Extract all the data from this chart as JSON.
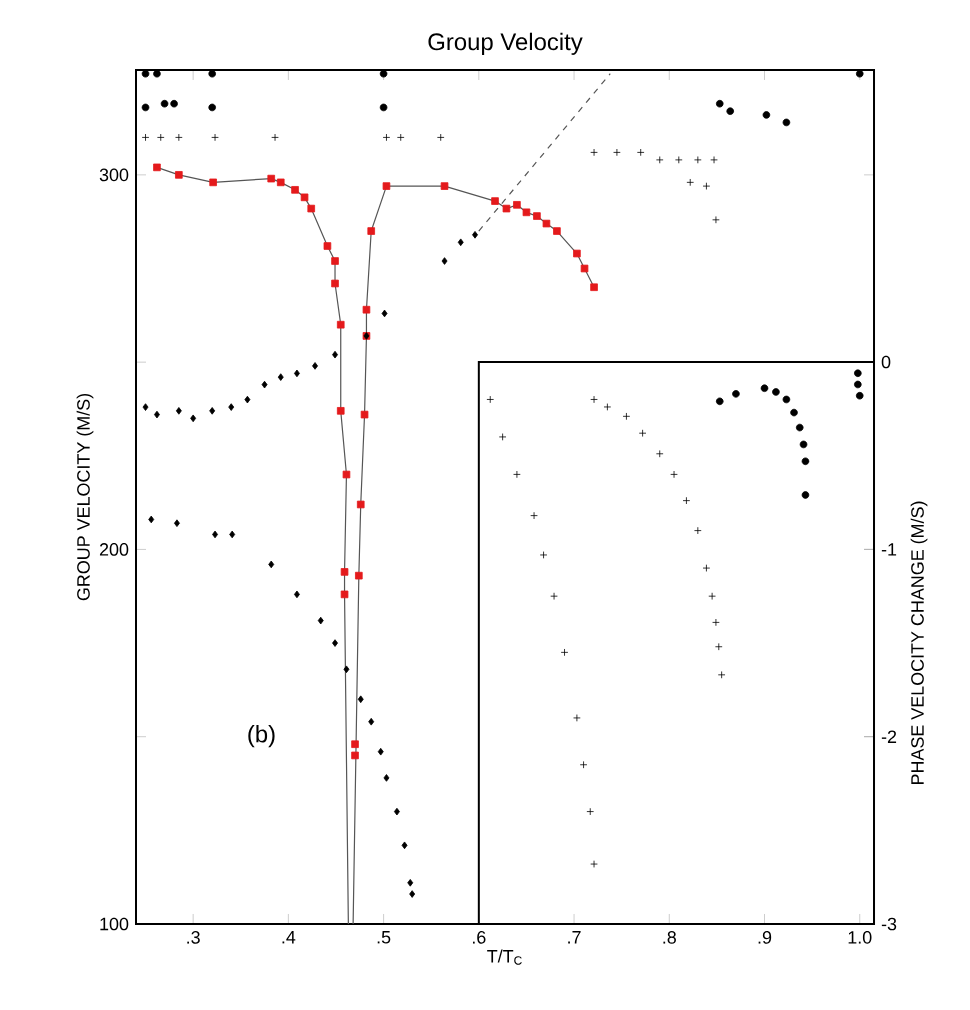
{
  "chart_data": {
    "type": "scatter",
    "title": "Group Velocity",
    "xlabel": "T/T$_{C}$",
    "ylabel": "GROUP VELOCITY (M/S)",
    "y2label": "PHASE VELOCITY CHANGE (M/S)",
    "annotations": [
      "(b)"
    ],
    "xlim": [
      0.24,
      1.015
    ],
    "ylim": [
      100,
      328
    ],
    "y2lim": [
      -3,
      0
    ],
    "xticks": [
      {
        "value": 0.3,
        "label": ".3"
      },
      {
        "value": 0.4,
        "label": ".4"
      },
      {
        "value": 0.5,
        "label": ".5"
      },
      {
        "value": 0.6,
        "label": ".6"
      },
      {
        "value": 0.7,
        "label": ".7"
      },
      {
        "value": 0.8,
        "label": ".8"
      },
      {
        "value": 0.9,
        "label": ".9"
      },
      {
        "value": 1.0,
        "label": "1.0"
      }
    ],
    "yticks": [
      100,
      {
        "value": 150,
        "label": null
      },
      200,
      {
        "value": 250,
        "label": null
      },
      300
    ],
    "y2ticks": [
      0,
      -1,
      -2,
      -3
    ],
    "series": [
      {
        "type": "line",
        "color": "#555555",
        "line_style": "solid",
        "marker": "none",
        "x": [
          0.262,
          0.285,
          0.321,
          0.382,
          0.392,
          0.407,
          0.417,
          0.424,
          0.441,
          0.449,
          0.449,
          0.455,
          0.455,
          0.461,
          0.459,
          0.459,
          0.463
        ],
        "values": [
          302,
          300,
          298,
          299,
          298,
          296,
          294,
          291,
          281,
          277,
          271,
          260,
          237,
          220,
          194,
          188,
          100
        ]
      },
      {
        "type": "line",
        "color": "#555555",
        "line_style": "solid",
        "marker": "none",
        "x": [
          0.468,
          0.474,
          0.476,
          0.48,
          0.482,
          0.482,
          0.487,
          0.503,
          0.564,
          0.617,
          0.629,
          0.64,
          0.65,
          0.661,
          0.671,
          0.682,
          0.703,
          0.711,
          0.721
        ],
        "values": [
          100,
          193,
          212,
          236,
          257,
          264,
          285,
          297,
          297,
          293,
          291,
          292,
          290,
          289,
          287,
          285,
          279,
          275,
          270
        ]
      },
      {
        "type": "line",
        "color": "#555555",
        "line_style": "dashed",
        "marker": "none",
        "x": [
          0.6,
          0.738
        ],
        "values": [
          285,
          327
        ]
      },
      {
        "type": "scatter",
        "color": "#e41a1c",
        "marker": "square",
        "x": [
          0.262,
          0.285,
          0.321,
          0.382,
          0.392,
          0.407,
          0.417,
          0.424,
          0.441,
          0.449,
          0.449,
          0.455,
          0.455,
          0.461,
          0.459,
          0.459,
          0.47,
          0.47,
          0.474,
          0.476,
          0.48,
          0.482,
          0.482,
          0.487,
          0.503,
          0.564,
          0.617,
          0.629,
          0.64,
          0.65,
          0.661,
          0.671,
          0.682,
          0.703,
          0.711,
          0.721
        ],
        "values": [
          302,
          300,
          298,
          299,
          298,
          296,
          294,
          291,
          281,
          277,
          271,
          260,
          237,
          220,
          194,
          188,
          148,
          145,
          193,
          212,
          236,
          257,
          264,
          285,
          297,
          297,
          293,
          291,
          292,
          290,
          289,
          287,
          285,
          279,
          275,
          270
        ]
      },
      {
        "type": "scatter",
        "color": "#000000",
        "marker": "diamond",
        "x": [
          0.25,
          0.262,
          0.285,
          0.3,
          0.32,
          0.34,
          0.357,
          0.375,
          0.392,
          0.409,
          0.428,
          0.449,
          0.482,
          0.501,
          0.564,
          0.581,
          0.596
        ],
        "values": [
          238,
          236,
          237,
          235,
          237,
          238,
          240,
          244,
          246,
          247,
          249,
          252,
          257,
          263,
          277,
          282,
          284
        ]
      },
      {
        "type": "scatter",
        "color": "#000000",
        "marker": "diamond",
        "x": [
          0.256,
          0.283,
          0.323,
          0.341,
          0.382,
          0.409,
          0.434,
          0.449,
          0.461,
          0.476,
          0.487,
          0.497,
          0.503,
          0.514,
          0.522,
          0.528,
          0.53
        ],
        "values": [
          208,
          207,
          204,
          204,
          196,
          188,
          181,
          175,
          168,
          160,
          154,
          146,
          139,
          130,
          121,
          111,
          108
        ]
      },
      {
        "type": "scatter",
        "color": "#000000",
        "marker": "circle",
        "x": [
          0.25,
          0.262,
          0.32,
          0.5,
          1.0
        ],
        "values": [
          327,
          327,
          327,
          327,
          327
        ]
      },
      {
        "type": "scatter",
        "color": "#000000",
        "marker": "circle",
        "x": [
          0.25,
          0.27,
          0.28,
          0.32,
          0.5,
          0.853,
          0.864,
          0.902,
          0.923
        ],
        "values": [
          318,
          319,
          319,
          318,
          318,
          319,
          317,
          316,
          314
        ]
      },
      {
        "type": "scatter",
        "color": "#000000",
        "marker": "cross",
        "x": [
          0.25,
          0.266,
          0.285,
          0.323,
          0.386,
          0.503,
          0.518,
          0.56,
          0.721,
          0.745,
          0.77,
          0.79,
          0.81,
          0.83,
          0.847,
          0.822,
          0.839,
          0.849
        ],
        "values": [
          310,
          310,
          310,
          310,
          310,
          310,
          310,
          310,
          306,
          306,
          306,
          304,
          304,
          304,
          304,
          298,
          297,
          288
        ]
      },
      {
        "type": "scatter",
        "axis": "y2",
        "color": "#000000",
        "marker": "cross",
        "x": [
          0.612,
          0.625,
          0.64,
          0.658,
          0.668,
          0.679,
          0.69,
          0.703,
          0.71,
          0.717,
          0.721
        ],
        "values": [
          -0.2,
          -0.4,
          -0.6,
          -0.82,
          -1.03,
          -1.25,
          -1.55,
          -1.9,
          -2.15,
          -2.4,
          -2.68
        ]
      },
      {
        "type": "scatter",
        "axis": "y2",
        "color": "#000000",
        "marker": "cross",
        "x": [
          0.721,
          0.735,
          0.755,
          0.772,
          0.79,
          0.805,
          0.818,
          0.83,
          0.839,
          0.845,
          0.849,
          0.852,
          0.855
        ],
        "values": [
          -0.2,
          -0.24,
          -0.29,
          -0.38,
          -0.49,
          -0.6,
          -0.74,
          -0.9,
          -1.1,
          -1.25,
          -1.39,
          -1.52,
          -1.67
        ]
      },
      {
        "type": "scatter",
        "axis": "y2",
        "color": "#000000",
        "marker": "circle",
        "x": [
          0.853,
          0.87,
          0.9,
          0.912,
          0.923,
          0.931,
          0.937,
          0.941,
          0.943,
          0.943
        ],
        "values": [
          -0.21,
          -0.17,
          -0.14,
          -0.16,
          -0.2,
          -0.27,
          -0.35,
          -0.44,
          -0.53,
          -0.71
        ]
      },
      {
        "type": "scatter",
        "axis": "y2",
        "color": "#000000",
        "marker": "circle",
        "x": [
          0.998,
          0.998,
          1.0
        ],
        "values": [
          -0.06,
          -0.12,
          -0.18
        ]
      }
    ]
  }
}
